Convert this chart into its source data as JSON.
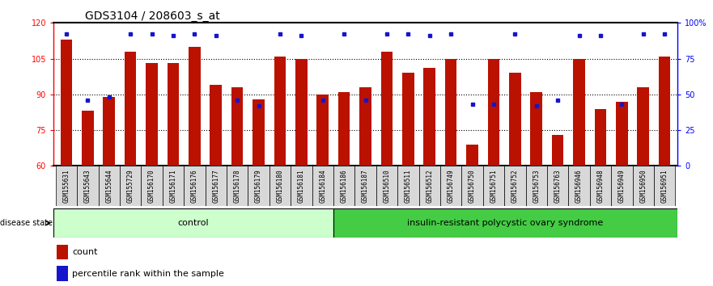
{
  "title": "GDS3104 / 208603_s_at",
  "samples": [
    "GSM155631",
    "GSM155643",
    "GSM155644",
    "GSM155729",
    "GSM156170",
    "GSM156171",
    "GSM156176",
    "GSM156177",
    "GSM156178",
    "GSM156179",
    "GSM156180",
    "GSM156181",
    "GSM156184",
    "GSM156186",
    "GSM156187",
    "GSM156510",
    "GSM156511",
    "GSM156512",
    "GSM156749",
    "GSM156750",
    "GSM156751",
    "GSM156752",
    "GSM156753",
    "GSM156763",
    "GSM156946",
    "GSM156948",
    "GSM156949",
    "GSM156950",
    "GSM156951"
  ],
  "bar_values": [
    113,
    83,
    89,
    108,
    103,
    103,
    110,
    94,
    93,
    88,
    106,
    105,
    90,
    91,
    93,
    108,
    99,
    101,
    105,
    69,
    105,
    99,
    91,
    73,
    105,
    84,
    87,
    93,
    106
  ],
  "percentile_values_pct": [
    92,
    46,
    48,
    92,
    92,
    91,
    92,
    91,
    46,
    42,
    92,
    91,
    46,
    92,
    46,
    92,
    92,
    91,
    92,
    43,
    43,
    92,
    42,
    46,
    91,
    91,
    43,
    92,
    92
  ],
  "control_count": 13,
  "ylim_left": [
    60,
    120
  ],
  "ylim_right": [
    0,
    100
  ],
  "yticks_left": [
    60,
    75,
    90,
    105,
    120
  ],
  "yticks_right": [
    0,
    25,
    50,
    75,
    100
  ],
  "ytick_labels_right": [
    "0",
    "25",
    "50",
    "75",
    "100%"
  ],
  "bar_color": "#bb1100",
  "percentile_color": "#1515cc",
  "control_bg": "#ccffcc",
  "pcos_bg": "#44cc44",
  "group_label_control": "control",
  "group_label_pcos": "insulin-resistant polycystic ovary syndrome",
  "disease_state_label": "disease state",
  "legend_count_label": "count",
  "legend_percentile_label": "percentile rank within the sample",
  "title_fontsize": 10,
  "tick_fontsize": 7,
  "label_bg": "#d8d8d8"
}
